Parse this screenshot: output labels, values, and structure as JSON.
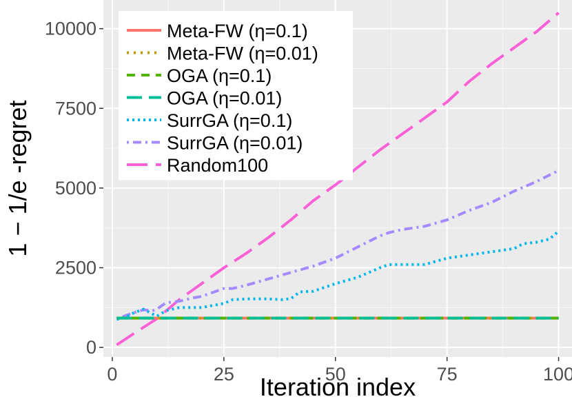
{
  "chart_data": {
    "type": "line",
    "xlabel": "Iteration index",
    "ylabel": "1 − 1/e -regret",
    "xlim": [
      -2,
      103
    ],
    "ylim": [
      -300,
      10900
    ],
    "xticks": [
      0,
      25,
      50,
      75,
      100
    ],
    "yticks": [
      0,
      2500,
      5000,
      7500,
      10000
    ],
    "xtick_labels": [
      "0",
      "25",
      "50",
      "75",
      "100"
    ],
    "ytick_labels": [
      "0",
      "2500",
      "5000",
      "7500",
      "10000"
    ],
    "grid": true,
    "legend_position": "top-left",
    "series": [
      {
        "name": "Meta-FW (η=0.1)",
        "color": "#F8766D",
        "dash": "solid",
        "x": [
          1,
          100
        ],
        "y": [
          920,
          920
        ]
      },
      {
        "name": "Meta-FW (η=0.01)",
        "color": "#C49A00",
        "dash": "dotted",
        "x": [
          1,
          100
        ],
        "y": [
          920,
          920
        ]
      },
      {
        "name": "OGA (η=0.1)",
        "color": "#53B400",
        "dash": "dashed",
        "x": [
          1,
          100
        ],
        "y": [
          920,
          920
        ]
      },
      {
        "name": "OGA (η=0.01)",
        "color": "#00C094",
        "dash": "longdash",
        "x": [
          1,
          100
        ],
        "y": [
          920,
          920
        ]
      },
      {
        "name": "SurrGA (η=0.1)",
        "color": "#00B6EB",
        "dash": "densedot",
        "x": [
          1,
          3,
          5,
          7,
          9,
          10,
          12,
          15,
          20,
          25,
          27,
          30,
          35,
          38,
          40,
          42,
          45,
          50,
          55,
          60,
          62,
          65,
          70,
          75,
          80,
          85,
          90,
          92,
          95,
          98,
          100
        ],
        "y": [
          880,
          950,
          1100,
          1200,
          1050,
          980,
          1150,
          1250,
          1250,
          1380,
          1500,
          1520,
          1520,
          1500,
          1530,
          1740,
          1760,
          2000,
          2200,
          2500,
          2600,
          2600,
          2600,
          2800,
          2900,
          3000,
          3100,
          3250,
          3300,
          3400,
          3650
        ]
      },
      {
        "name": "SurrGA (η=0.01)",
        "color": "#A58AFF",
        "dash": "dotdash",
        "x": [
          1,
          3,
          5,
          7,
          9,
          10,
          12,
          15,
          18,
          20,
          22,
          25,
          27,
          30,
          35,
          40,
          45,
          50,
          55,
          60,
          62,
          65,
          70,
          75,
          80,
          85,
          90,
          95,
          100
        ],
        "y": [
          900,
          1000,
          1100,
          1180,
          1150,
          1200,
          1400,
          1450,
          1550,
          1600,
          1700,
          1850,
          1850,
          1950,
          2150,
          2350,
          2550,
          2800,
          3150,
          3500,
          3600,
          3700,
          3800,
          4000,
          4300,
          4550,
          4900,
          5200,
          5550
        ]
      },
      {
        "name": "Random100",
        "color": "#FB61D7",
        "dash": "bigdash",
        "x": [
          1,
          5,
          10,
          15,
          20,
          25,
          30,
          35,
          40,
          45,
          50,
          55,
          60,
          65,
          70,
          75,
          80,
          85,
          90,
          95,
          100
        ],
        "y": [
          80,
          450,
          900,
          1500,
          2000,
          2500,
          2950,
          3450,
          4000,
          4600,
          5100,
          5650,
          6200,
          6700,
          7200,
          7700,
          8350,
          8900,
          9400,
          9900,
          10500
        ]
      }
    ]
  }
}
